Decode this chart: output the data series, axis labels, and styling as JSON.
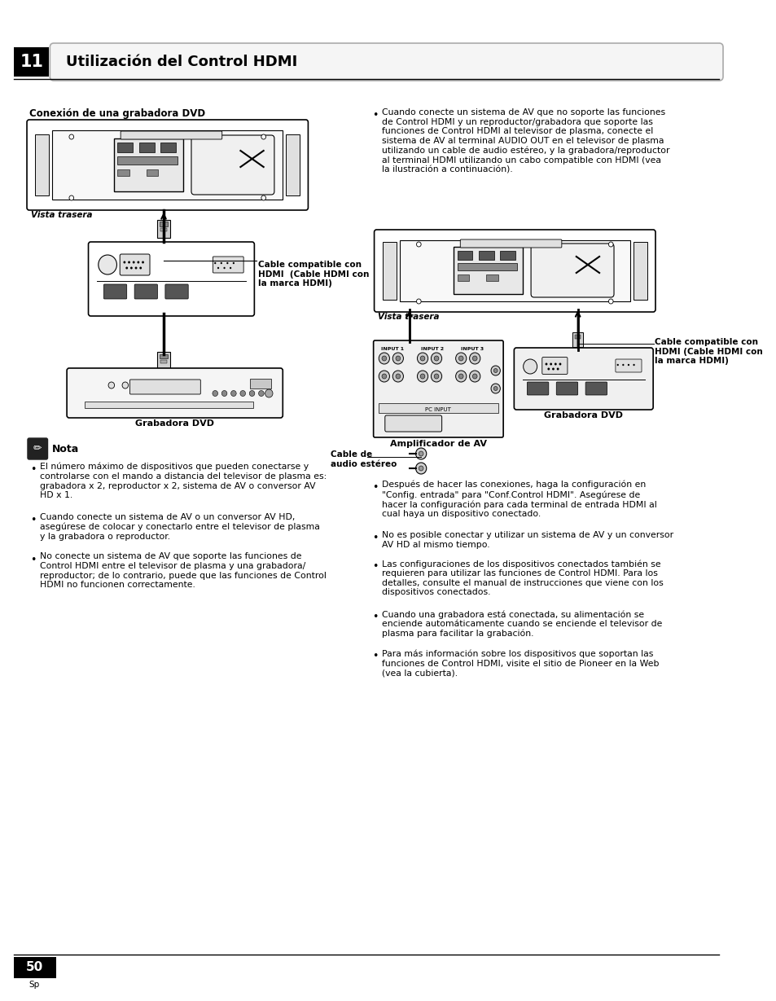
{
  "title_number": "11",
  "title_text": "Utilización del Control HDMI",
  "bg_color": "#ffffff",
  "header_bg": "#000000",
  "left_section_title": "Conexión de una grabadora DVD",
  "note_title": "Nota",
  "bullet_points_left": [
    "El número máximo de dispositivos que pueden conectarse y\ncontrolarse con el mando a distancia del televisor de plasma es:\ngrabadora x 2, reproductor x 2, sistema de AV o conversor AV\nHD x 1.",
    "Cuando conecte un sistema de AV o un conversor AV HD,\nasegúrese de colocar y conectarlo entre el televisor de plasma\ny la grabadora o reproductor.",
    "No conecte un sistema de AV que soporte las funciones de\nControl HDMI entre el televisor de plasma y una grabadora/\nreproductor; de lo contrario, puede que las funciones de Control\nHDMI no funcionen correctamente."
  ],
  "bullet_points_right": [
    "Cuando conecte un sistema de AV que no soporte las funciones\nde Control HDMI y un reproductor/grabadora que soporte las\nfunciones de Control HDMI al televisor de plasma, conecte el\nsistema de AV al terminal AUDIO OUT en el televisor de plasma\nutilizando un cable de audio estéreo, y la grabadora/reproductor\nal terminal HDMI utilizando un cabo compatible con HDMI (vea\nla ilustración a continuación).",
    "Después de hacer las conexiones, haga la configuración en\n\"Config. entrada\" para \"Conf.Control HDMI\". Asegúrese de\nhacer la configuración para cada terminal de entrada HDMI al\ncual haya un dispositivo conectado.",
    "No es posible conectar y utilizar un sistema de AV y un conversor\nAV HD al mismo tiempo.",
    "Las configuraciones de los dispositivos conectados también se\nrequieren para utilizar las funciones de Control HDMI. Para los\ndetalles, consulte el manual de instrucciones que viene con los\ndispositivos conectados.",
    "Cuando una grabadora está conectada, su alimentación se\nenciende automáticamente cuando se enciende el televisor de\nplasma para facilitar la grabación.",
    "Para más información sobre los dispositivos que soportan las\nfunciones de Control HDMI, visite el sitio de Pioneer en la Web\n(vea la cubierta)."
  ],
  "left_diagram_labels": {
    "vista_trasera": "Vista trasera",
    "cable_label": "Cable compatible con\nHDMI  (Cable HDMI con\nla marca HDMI)",
    "grabadora": "Grabadora DVD"
  },
  "right_diagram_labels": {
    "vista_trasera": "Vista trasera",
    "cable_audio": "Cable de\naudio estéreo",
    "cable_hdmi": "Cable compatible con\nHDMI (Cable HDMI con\nla marca HDMI)",
    "amplificador": "Amplificador de AV",
    "grabadora": "Grabadora DVD"
  },
  "page_number": "50",
  "page_sub": "Sp",
  "text_color": "#000000",
  "line_color": "#000000",
  "gray1": "#f0f0f0",
  "gray2": "#d0d0d0",
  "gray3": "#888888"
}
